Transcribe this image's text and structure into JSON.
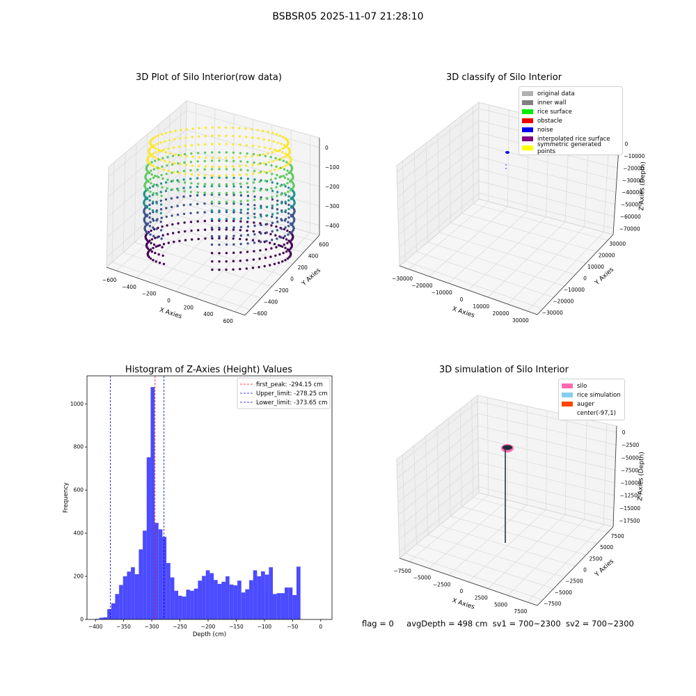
{
  "suptitle": "BSBSR05 2025-11-07 21:28:10",
  "status": {
    "flag": "flag = 0",
    "avg_depth": "avgDepth = 498 cm",
    "sv1": "sv1 = 700~2300",
    "sv2": "sv2 = 700~2300"
  },
  "panels": {
    "raw": {
      "title": "3D Plot of Silo Interior(row data)",
      "xlabel": "X Axies",
      "ylabel": "Y Axies",
      "zlabel": "Z Axies (Depth)",
      "xticks": [
        "−600",
        "−400",
        "−200",
        "0",
        "200",
        "400",
        "600"
      ],
      "yticks": [
        "−600",
        "−400",
        "−200",
        "0",
        "200",
        "400",
        "600"
      ],
      "zticks": [
        "0",
        "−100",
        "−200",
        "−300",
        "−400"
      ]
    },
    "classify": {
      "title": "3D classify of Silo Interior",
      "xlabel": "X Axies",
      "ylabel": "Y Axies",
      "zlabel": "Z Axies (Depth)",
      "xticks": [
        "−30000",
        "−20000",
        "−10000",
        "0",
        "10000",
        "20000",
        "30000"
      ],
      "yticks": [
        "−30000",
        "−20000",
        "−10000",
        "0",
        "10000",
        "20000",
        "30000"
      ],
      "zticks": [
        "0",
        "−10000",
        "−20000",
        "−30000",
        "−40000",
        "−50000",
        "−60000",
        "−70000"
      ],
      "legend": [
        {
          "label": "original data",
          "color": "#b0b0b0"
        },
        {
          "label": "inner wall",
          "color": "#808080"
        },
        {
          "label": "rice surface",
          "color": "#00ee00"
        },
        {
          "label": "obstacle",
          "color": "#ee0000"
        },
        {
          "label": "noise",
          "color": "#0000ee"
        },
        {
          "label": "interpolated rice surface",
          "color": "#800080"
        },
        {
          "label": "symmetric generated points",
          "color": "#ffff00"
        }
      ]
    },
    "simulation": {
      "title": "3D simulation of Silo Interior",
      "xlabel": "X Axies",
      "ylabel": "Y Axies",
      "zlabel": "Z Axies (Depth)",
      "xticks": [
        "−7500",
        "−5000",
        "−2500",
        "0",
        "2500",
        "5000",
        "7500"
      ],
      "yticks": [
        "−7500",
        "−5000",
        "−2500",
        "0",
        "2500",
        "5000",
        "7500"
      ],
      "zticks": [
        "0",
        "−2500",
        "−5000",
        "−7500",
        "−10000",
        "−12500",
        "−15000",
        "−17500"
      ],
      "legend": [
        {
          "label": "silo",
          "color": "#ff69b4"
        },
        {
          "label": "rice simulation",
          "color": "#87ceeb"
        },
        {
          "label": "auger",
          "color": "#ff4500"
        },
        {
          "label": "center(-97,1)",
          "color": ""
        }
      ]
    }
  },
  "chart_data": {
    "type": "bar",
    "title": "Histogram of Z-Axies (Height) Values",
    "xlabel": "Depth (cm)",
    "ylabel": "Frequency",
    "xlim": [
      -415,
      20
    ],
    "ylim": [
      0,
      1130
    ],
    "xticks": [
      -400,
      -350,
      -300,
      -250,
      -200,
      -150,
      -100,
      -50,
      0
    ],
    "yticks": [
      0,
      200,
      400,
      600,
      800,
      1000
    ],
    "bin_start": -400,
    "bin_width": 7.0,
    "values": [
      3,
      8,
      10,
      48,
      75,
      118,
      160,
      200,
      222,
      242,
      210,
      325,
      412,
      752,
      1078,
      448,
      418,
      383,
      262,
      195,
      133,
      110,
      106,
      138,
      133,
      143,
      180,
      202,
      228,
      215,
      183,
      165,
      175,
      200,
      162,
      158,
      180,
      125,
      140,
      182,
      228,
      200,
      223,
      208,
      242,
      118,
      122,
      122,
      148,
      148,
      113,
      245
    ],
    "bar_color": "#4b4bff",
    "lines": [
      {
        "label": "first_peak: -294.15 cm",
        "x": -294.15,
        "color": "#ff0000"
      },
      {
        "label": "Upper_limit: -278.25 cm",
        "x": -278.25,
        "color": "#0000cc"
      },
      {
        "label": "Lower_limit: -373.65 cm",
        "x": -373.65,
        "color": "#0000cc"
      }
    ],
    "legend_position": "top-right"
  }
}
